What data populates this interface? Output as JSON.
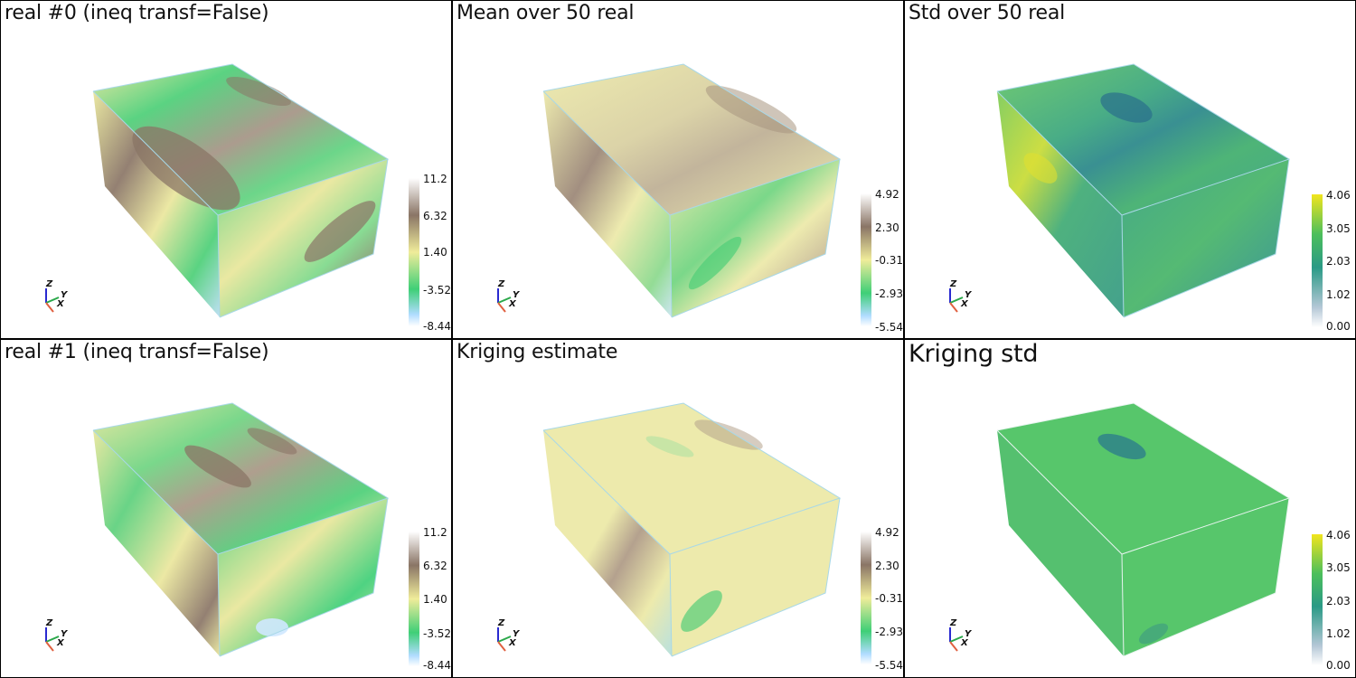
{
  "panels": [
    {
      "title": "real #0 (ineq transf=False)",
      "colorbar": {
        "ticks": [
          "11.2",
          "6.32",
          "1.40",
          "-3.52",
          "-8.44"
        ],
        "colormap": "terrain",
        "colors": [
          "#ffffff",
          "#8a7566",
          "#f0ec9a",
          "#3fcf77",
          "#b0dcff"
        ]
      },
      "axes": {
        "z": "Z",
        "y": "Y",
        "x": "X"
      }
    },
    {
      "title": "Mean over 50 real",
      "colorbar": {
        "ticks": [
          "4.92",
          "2.30",
          "-0.312",
          "-2.93",
          "-5.54"
        ],
        "colormap": "terrain",
        "colors": [
          "#ffffff",
          "#8a7566",
          "#f0ec9a",
          "#3fcf77",
          "#b0dcff"
        ]
      },
      "axes": {
        "z": "Z",
        "y": "Y",
        "x": "X"
      }
    },
    {
      "title": "Std over 50 real",
      "colorbar": {
        "ticks": [
          "4.06",
          "3.05",
          "2.03",
          "1.02",
          "0.00"
        ],
        "colormap": "viridis-light",
        "colors": [
          "#f2e51d",
          "#4cbf5b",
          "#2a9a86",
          "#b4c7d6",
          "#ffffff"
        ]
      },
      "axes": {
        "z": "Z",
        "y": "Y",
        "x": "X"
      }
    },
    {
      "title": "real #1 (ineq transf=False)",
      "colorbar": {
        "ticks": [
          "11.2",
          "6.32",
          "1.40",
          "-3.52",
          "-8.44"
        ],
        "colormap": "terrain",
        "colors": [
          "#ffffff",
          "#8a7566",
          "#f0ec9a",
          "#3fcf77",
          "#b0dcff"
        ]
      },
      "axes": {
        "z": "Z",
        "y": "Y",
        "x": "X"
      }
    },
    {
      "title": "Kriging estimate",
      "colorbar": {
        "ticks": [
          "4.92",
          "2.30",
          "-0.312",
          "-2.93",
          "-5.54"
        ],
        "colormap": "terrain",
        "colors": [
          "#ffffff",
          "#8a7566",
          "#f0ec9a",
          "#3fcf77",
          "#b0dcff"
        ]
      },
      "axes": {
        "z": "Z",
        "y": "Y",
        "x": "X"
      }
    },
    {
      "title": "Kriging std",
      "colorbar": {
        "ticks": [
          "4.06",
          "3.05",
          "2.03",
          "1.02",
          "0.00"
        ],
        "colormap": "viridis-light",
        "colors": [
          "#f2e51d",
          "#4cbf5b",
          "#2a9a86",
          "#b4c7d6",
          "#ffffff"
        ]
      },
      "axes": {
        "z": "Z",
        "y": "Y",
        "x": "X"
      }
    }
  ]
}
